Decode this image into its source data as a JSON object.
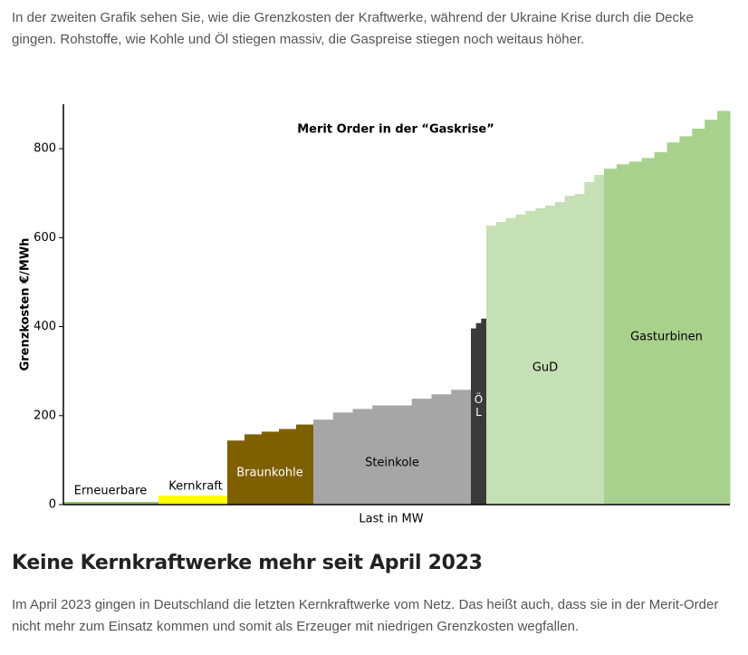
{
  "intro": "In der zweiten Grafik sehen Sie, wie die Grenzkosten der Kraftwerke, während der Ukraine Krise durch die Decke gingen. Rohstoffe, wie Kohle und Öl stiegen massiv, die Gaspreise stiegen noch weitaus höher.",
  "chart_data": {
    "type": "step-bar",
    "title": "Merit Order in der “Gaskrise”",
    "ylabel": "Grenzkosten €/MWh",
    "xlabel": "Last in MW",
    "ylim": [
      0,
      900
    ],
    "yticks": [
      0,
      200,
      400,
      600,
      800
    ],
    "groups": [
      {
        "name": "Erneuerbare",
        "color": "#8dc26a",
        "values": [
          6
        ]
      },
      {
        "name": "Kernkraft",
        "color": "#ffff00",
        "values": [
          20
        ]
      },
      {
        "name": "Braunkohle",
        "color": "#7f6000",
        "values": [
          144,
          158,
          164,
          170,
          180
        ]
      },
      {
        "name": "Steinkole",
        "color": "#a6a6a6",
        "values": [
          191,
          207,
          215,
          223,
          223,
          238,
          248,
          258
        ]
      },
      {
        "name": "ÖL",
        "color": "#3a3a3a",
        "values": [
          396,
          408,
          418
        ]
      },
      {
        "name": "GuD",
        "color": "#c5e0b4",
        "values": [
          627,
          635,
          644,
          652,
          660,
          666,
          672,
          680,
          694,
          698,
          725,
          741
        ]
      },
      {
        "name": "Gasturbinen",
        "color": "#a9d18e",
        "values": [
          755,
          765,
          771,
          779,
          792,
          814,
          828,
          845,
          865,
          885
        ]
      }
    ]
  },
  "heading": "Keine Kernkraftwerke mehr seit April 2023",
  "body": "Im April 2023 gingen in Deutschland die letzten Kernkraftwerke vom Netz. Das heißt auch, dass sie in der Merit-Order nicht mehr zum Einsatz kommen und somit als Erzeuger mit niedrigen Grenzkosten wegfallen."
}
